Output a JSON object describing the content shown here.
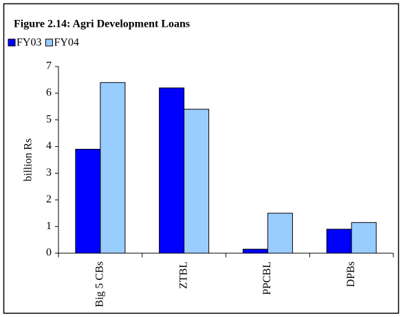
{
  "chart_data": {
    "type": "bar",
    "title": "Figure 2.14: Agri Development Loans",
    "y_label": "billion Rs",
    "categories": [
      "Big 5 CBs",
      "ZTBL",
      "PPCBL",
      "DPBs"
    ],
    "series": [
      {
        "name": "FY03",
        "color": "#0000ff",
        "values": [
          3.9,
          6.2,
          0.15,
          0.9
        ]
      },
      {
        "name": "FY04",
        "color": "#99ccff",
        "values": [
          6.4,
          5.4,
          1.5,
          1.15
        ]
      }
    ],
    "ylim": [
      0,
      7
    ],
    "yticks": [
      0,
      1,
      2,
      3,
      4,
      5,
      6,
      7
    ],
    "grid": false
  }
}
